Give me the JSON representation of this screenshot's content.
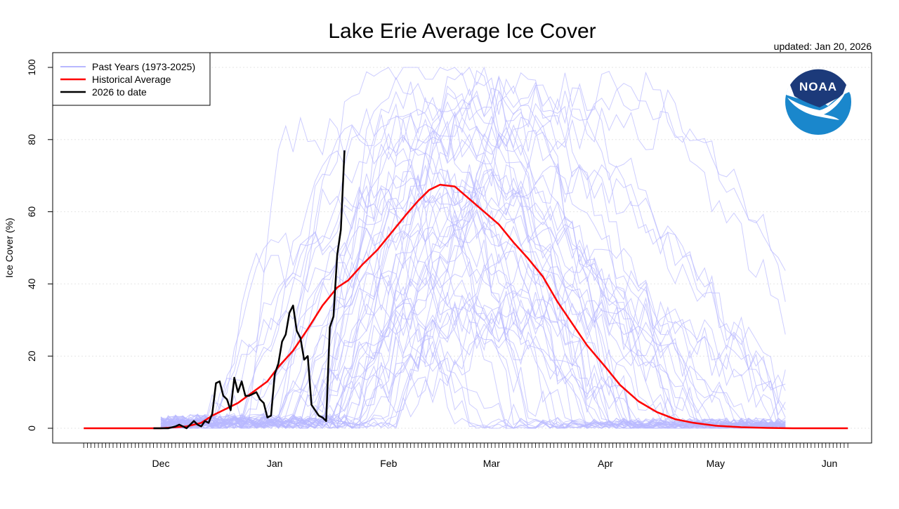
{
  "chart_data": {
    "type": "line",
    "title": "Lake Erie Average Ice Cover",
    "subtitle": "updated: Jan 20, 2026",
    "ylabel": "Ice Cover (%)",
    "xlabel": "",
    "ylim": [
      0,
      100
    ],
    "yticks": [
      0,
      20,
      40,
      60,
      80,
      100
    ],
    "x_month_ticks": [
      {
        "label": "Dec",
        "date": "Dec 1"
      },
      {
        "label": "Jan",
        "date": "Jan 1"
      },
      {
        "label": "Feb",
        "date": "Feb 1"
      },
      {
        "label": "Mar",
        "date": "Mar 1"
      },
      {
        "label": "Apr",
        "date": "Apr 1"
      },
      {
        "label": "May",
        "date": "May 1"
      },
      {
        "label": "Jun",
        "date": "Jun 1"
      }
    ],
    "x_range": [
      "Nov 10",
      "Jun 6"
    ],
    "grid": "horizontal dotted",
    "legend_position": "top-left",
    "logo": "NOAA",
    "legend": [
      {
        "label": "Past Years (1973-2025)",
        "color": "#b8b8ff"
      },
      {
        "label": "Historical Average",
        "color": "#ff0000"
      },
      {
        "label": "2026 to date",
        "color": "#000000"
      }
    ],
    "series": [
      {
        "name": "Historical Average",
        "color": "#ff0000",
        "x": [
          "Nov 10",
          "Dec 1",
          "Dec 8",
          "Dec 12",
          "Dec 15",
          "Dec 18",
          "Dec 22",
          "Dec 26",
          "Dec 30",
          "Jan 2",
          "Jan 6",
          "Jan 10",
          "Jan 14",
          "Jan 18",
          "Jan 21",
          "Jan 25",
          "Jan 29",
          "Feb 2",
          "Feb 6",
          "Feb 9",
          "Feb 12",
          "Feb 15",
          "Feb 19",
          "Feb 23",
          "Feb 27",
          "Mar 3",
          "Mar 7",
          "Mar 11",
          "Mar 15",
          "Mar 19",
          "Mar 23",
          "Mar 27",
          "Apr 1",
          "Apr 5",
          "Apr 10",
          "Apr 15",
          "Apr 20",
          "Apr 25",
          "May 1",
          "May 8",
          "May 15",
          "May 22",
          "Jun 6"
        ],
        "y": [
          0,
          0,
          0.5,
          1.5,
          3.5,
          5,
          7,
          10,
          13,
          17,
          21.5,
          27.5,
          34,
          39,
          41,
          45.5,
          49.5,
          54.5,
          59.5,
          63,
          66,
          67.5,
          67,
          63.5,
          60,
          56.5,
          51.5,
          47,
          42,
          35,
          29,
          23,
          17,
          12,
          7.5,
          4.5,
          2.5,
          1.5,
          0.7,
          0.3,
          0.1,
          0,
          0
        ]
      },
      {
        "name": "2026 to date",
        "color": "#000000",
        "x": [
          "Nov 29",
          "Dec 3",
          "Dec 5",
          "Dec 6",
          "Dec 7",
          "Dec 8",
          "Dec 9",
          "Dec 10",
          "Dec 11",
          "Dec 12",
          "Dec 13",
          "Dec 14",
          "Dec 15",
          "Dec 16",
          "Dec 17",
          "Dec 18",
          "Dec 19",
          "Dec 20",
          "Dec 21",
          "Dec 22",
          "Dec 23",
          "Dec 24",
          "Dec 25",
          "Dec 26",
          "Dec 27",
          "Dec 28",
          "Dec 29",
          "Dec 30",
          "Dec 31",
          "Jan 1",
          "Jan 2",
          "Jan 3",
          "Jan 4",
          "Jan 5",
          "Jan 6",
          "Jan 7",
          "Jan 8",
          "Jan 9",
          "Jan 10",
          "Jan 11",
          "Jan 12",
          "Jan 13",
          "Jan 14",
          "Jan 15",
          "Jan 16",
          "Jan 17",
          "Jan 18",
          "Jan 19",
          "Jan 20"
        ],
        "y": [
          0,
          0,
          0.5,
          1,
          0.5,
          0,
          1,
          2,
          1,
          0.5,
          2,
          1.5,
          4,
          12.5,
          13,
          9,
          8,
          5,
          14,
          10,
          13,
          9,
          9,
          9.5,
          10,
          8,
          7,
          3,
          3.5,
          15,
          18,
          24,
          26,
          32,
          34,
          27,
          25,
          19,
          20,
          6.5,
          5,
          3.5,
          3,
          2,
          28,
          31,
          48,
          55,
          77
        ]
      }
    ]
  }
}
